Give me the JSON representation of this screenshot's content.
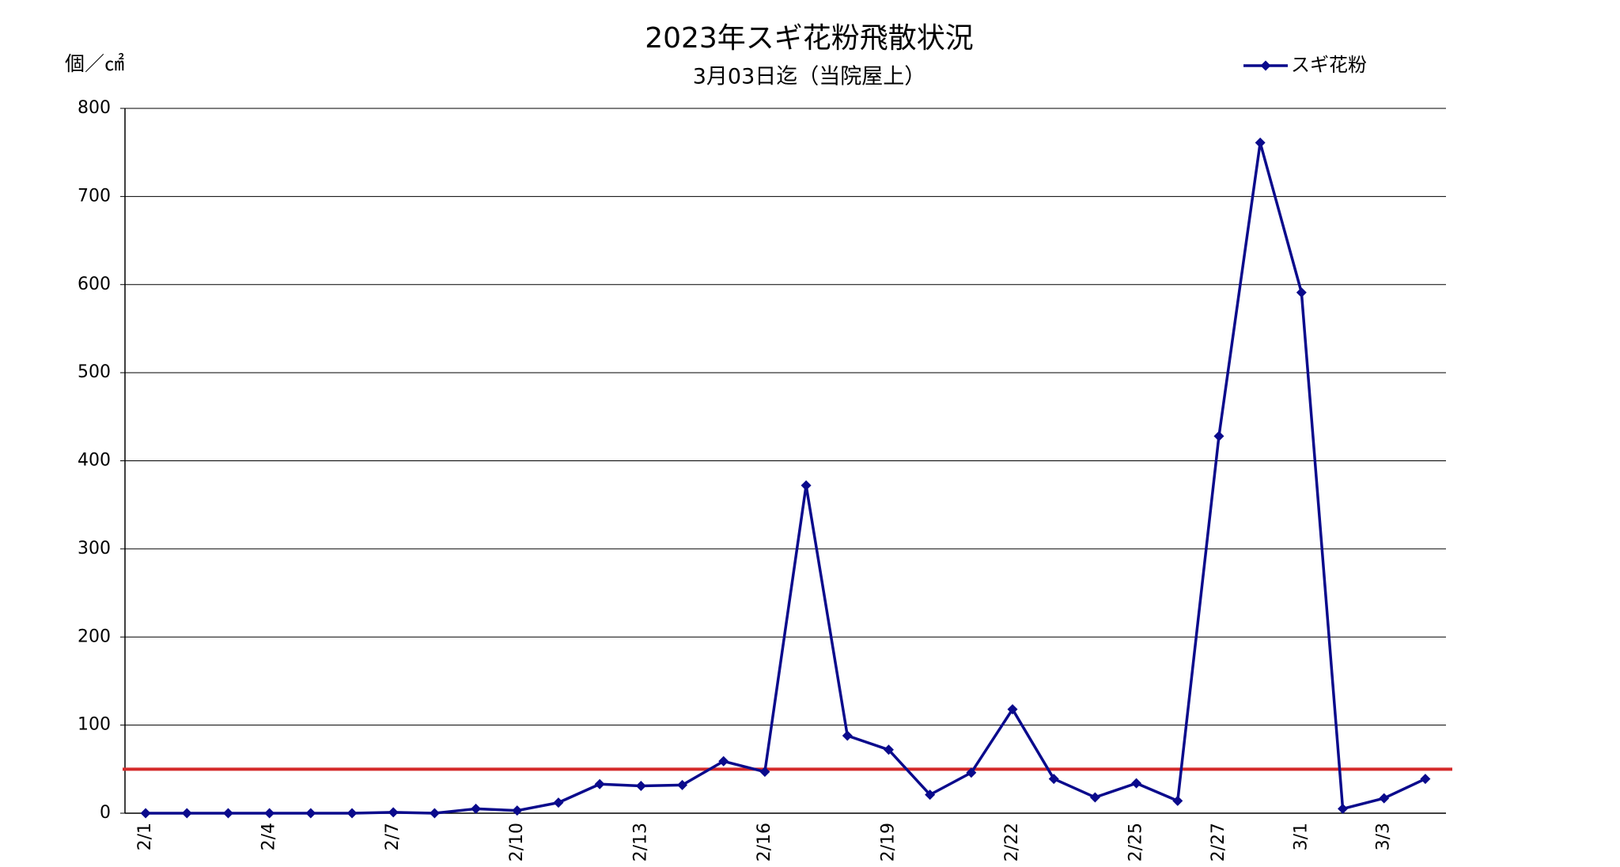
{
  "chart_data": {
    "type": "line",
    "title": "2023年スギ花粉飛散状況",
    "subtitle": "3月03日迄（当院屋上）",
    "y_label": "個／㎠",
    "categories": [
      "2/1",
      null,
      null,
      "2/4",
      null,
      null,
      "2/7",
      null,
      null,
      "2/10",
      null,
      null,
      "2/13",
      null,
      null,
      "2/16",
      null,
      null,
      "2/19",
      null,
      null,
      "2/22",
      null,
      null,
      "2/25",
      null,
      "2/27",
      null,
      "3/1",
      null,
      "3/3",
      null
    ],
    "series": [
      {
        "name": "スギ花粉",
        "color": "#0a0a8c",
        "values": [
          0,
          0,
          0,
          0,
          0,
          0,
          1,
          0,
          5,
          3,
          12,
          33,
          31,
          32,
          59,
          47,
          372,
          88,
          72,
          21,
          46,
          118,
          39,
          18,
          34,
          14,
          428,
          761,
          591,
          5,
          17,
          39
        ]
      }
    ],
    "reference_line": {
      "value": 50,
      "color": "#d42a2a"
    },
    "ylim": [
      0,
      800
    ],
    "yticks": [
      0,
      100,
      200,
      300,
      400,
      500,
      600,
      700,
      800
    ],
    "grid": true,
    "legend": "top-right"
  }
}
